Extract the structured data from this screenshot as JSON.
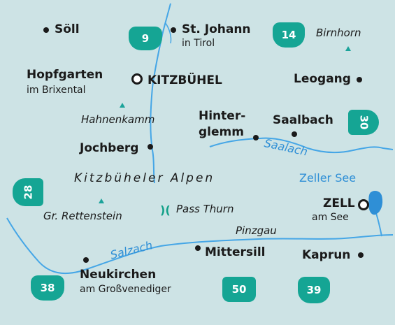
{
  "map": {
    "colors": {
      "land": "#cde3e5",
      "water": "#2f8fd6",
      "river": "#45a6e6",
      "road_shield": "#15a594",
      "peak": "#1ba39a",
      "text": "#1a1a1a"
    },
    "towns": {
      "soell": "Söll",
      "st_johann": "St. Johann",
      "st_johann_sub": "in Tirol",
      "hopfgarten": "Hopfgarten",
      "hopfgarten_sub": "im Brixental",
      "kitzbuehel": "KITZBÜHEL",
      "leogang": "Leogang",
      "hinterglemm_1": "Hinter-",
      "hinterglemm_2": "glemm",
      "saalbach": "Saalbach",
      "jochberg": "Jochberg",
      "zell": "ZELL",
      "zell_sub": "am See",
      "mittersill": "Mittersill",
      "kaprun": "Kaprun",
      "neukirchen": "Neukirchen",
      "neukirchen_sub": "am Großvenediger"
    },
    "peaks": {
      "birnhorn": "Birnhorn",
      "hahnenkamm": "Hahnenkamm",
      "gr_rettenstein": "Gr. Rettenstein"
    },
    "region": "Kitzbüheler Alpen",
    "valley": "Pinzgau",
    "pass": {
      "icon": "pass-icon",
      "symbol": ")(",
      "name": "Pass Thurn"
    },
    "waters": {
      "saalach": "Saalach",
      "zeller_see": "Zeller See",
      "salzach": "Salzach"
    },
    "map_numbers": [
      "9",
      "14",
      "30",
      "28",
      "38",
      "50",
      "39"
    ]
  }
}
